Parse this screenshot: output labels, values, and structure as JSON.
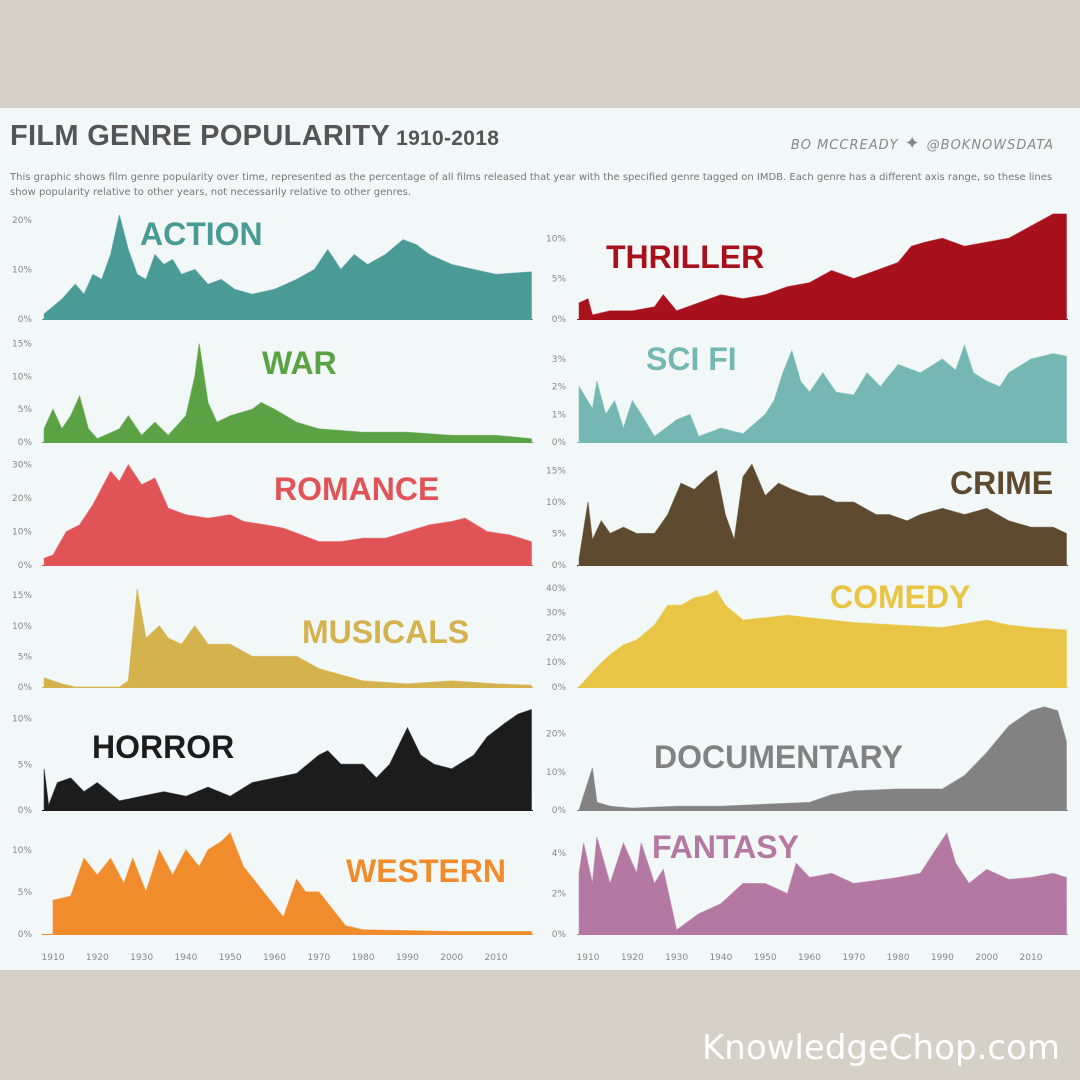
{
  "header": {
    "title": "FILM GENRE POPULARITY",
    "years": "1910-2018",
    "author": "BO MCCREADY",
    "twitter_icon": "twitter-bird-icon",
    "handle": "@BOKNOWSDATA",
    "description": "This graphic shows film genre popularity over time, represented as the percentage of all films released that year with the specified genre tagged on IMDB. Each genre has a different axis range, so these lines show popularity relative to other years, not necessarily relative to other genres."
  },
  "watermark": "KnowledgeChop.com",
  "chart_data": [
    {
      "type": "area",
      "name": "ACTION",
      "color": "#4a9a96",
      "ylim": [
        0,
        22
      ],
      "yticks": [
        {
          "v": 0,
          "label": "0%"
        },
        {
          "v": 10,
          "label": "10%"
        },
        {
          "v": 20,
          "label": "20%"
        }
      ],
      "x": [
        1908,
        1912,
        1915,
        1917,
        1919,
        1921,
        1923,
        1925,
        1927,
        1929,
        1931,
        1933,
        1935,
        1937,
        1939,
        1942,
        1945,
        1948,
        1951,
        1955,
        1960,
        1965,
        1969,
        1972,
        1975,
        1978,
        1981,
        1985,
        1989,
        1992,
        1995,
        2000,
        2005,
        2010,
        2018
      ],
      "y": [
        1,
        4,
        7,
        5,
        9,
        8,
        13,
        21,
        14,
        9,
        8,
        13,
        11,
        12,
        9,
        10,
        7,
        8,
        6,
        5,
        6,
        8,
        10,
        14,
        10,
        13,
        11,
        13,
        16,
        15,
        13,
        11,
        10,
        9,
        9.5
      ]
    },
    {
      "type": "area",
      "name": "THRILLER",
      "color": "#a8101c",
      "ylim": [
        0,
        13.5
      ],
      "yticks": [
        {
          "v": 0,
          "label": "0%"
        },
        {
          "v": 5,
          "label": "5%"
        },
        {
          "v": 10,
          "label": "10%"
        }
      ],
      "x": [
        1908,
        1910,
        1911,
        1915,
        1920,
        1925,
        1927,
        1930,
        1935,
        1940,
        1945,
        1950,
        1955,
        1960,
        1965,
        1970,
        1975,
        1980,
        1983,
        1986,
        1990,
        1995,
        2000,
        2005,
        2010,
        2015,
        2018
      ],
      "y": [
        2,
        2.5,
        0.5,
        1,
        1,
        1.5,
        3,
        1,
        2,
        3,
        2.5,
        3,
        4,
        4.5,
        6,
        5,
        6,
        7,
        9,
        9.5,
        10,
        9,
        9.5,
        10,
        11.5,
        13,
        13
      ]
    },
    {
      "type": "area",
      "name": "WAR",
      "color": "#5aa244",
      "ylim": [
        0,
        16
      ],
      "yticks": [
        {
          "v": 0,
          "label": "0%"
        },
        {
          "v": 5,
          "label": "5%"
        },
        {
          "v": 10,
          "label": "10%"
        },
        {
          "v": 15,
          "label": "15%"
        }
      ],
      "x": [
        1908,
        1910,
        1912,
        1914,
        1916,
        1918,
        1920,
        1925,
        1927,
        1930,
        1933,
        1936,
        1940,
        1942,
        1943,
        1945,
        1947,
        1950,
        1955,
        1957,
        1960,
        1965,
        1970,
        1980,
        1990,
        2000,
        2010,
        2018
      ],
      "y": [
        2,
        5,
        2,
        4,
        7,
        2,
        0.5,
        2,
        4,
        1,
        3,
        1,
        4,
        10,
        15,
        6,
        3,
        4,
        5,
        6,
        5,
        3,
        2,
        1.5,
        1.5,
        1,
        1,
        0.5
      ]
    },
    {
      "type": "area",
      "name": "SCI FI",
      "color": "#75b7b2",
      "ylim": [
        0,
        3.8
      ],
      "yticks": [
        {
          "v": 0,
          "label": "0%"
        },
        {
          "v": 1,
          "label": "1%"
        },
        {
          "v": 2,
          "label": "2%"
        },
        {
          "v": 3,
          "label": "3%"
        }
      ],
      "x": [
        1908,
        1911,
        1912,
        1914,
        1916,
        1918,
        1920,
        1922,
        1925,
        1930,
        1933,
        1935,
        1940,
        1945,
        1950,
        1952,
        1954,
        1956,
        1958,
        1960,
        1963,
        1966,
        1970,
        1973,
        1976,
        1980,
        1985,
        1990,
        1993,
        1995,
        1997,
        2000,
        2003,
        2005,
        2010,
        2015,
        2018
      ],
      "y": [
        2,
        1.2,
        2.2,
        1,
        1.5,
        0.5,
        1.5,
        1,
        0.2,
        0.8,
        1,
        0.2,
        0.5,
        0.3,
        1,
        1.5,
        2.5,
        3.3,
        2.2,
        1.8,
        2.5,
        1.8,
        1.7,
        2.5,
        2,
        2.8,
        2.5,
        3,
        2.6,
        3.5,
        2.5,
        2.2,
        2,
        2.5,
        3,
        3.2,
        3.1
      ]
    },
    {
      "type": "area",
      "name": "ROMANCE",
      "color": "#e05458",
      "ylim": [
        0,
        32
      ],
      "yticks": [
        {
          "v": 0,
          "label": "0%"
        },
        {
          "v": 10,
          "label": "10%"
        },
        {
          "v": 20,
          "label": "20%"
        },
        {
          "v": 30,
          "label": "30%"
        }
      ],
      "x": [
        1908,
        1910,
        1913,
        1916,
        1919,
        1923,
        1925,
        1927,
        1930,
        1933,
        1936,
        1940,
        1945,
        1950,
        1953,
        1958,
        1962,
        1966,
        1970,
        1975,
        1980,
        1985,
        1990,
        1995,
        2000,
        2003,
        2008,
        2013,
        2018
      ],
      "y": [
        2,
        3,
        10,
        12,
        18,
        28,
        25,
        30,
        24,
        26,
        17,
        15,
        14,
        15,
        13,
        12,
        11,
        9,
        7,
        7,
        8,
        8,
        10,
        12,
        13,
        14,
        10,
        9,
        7
      ]
    },
    {
      "type": "area",
      "name": "CRIME",
      "color": "#5e4a2e",
      "ylim": [
        0,
        17
      ],
      "yticks": [
        {
          "v": 0,
          "label": "0%"
        },
        {
          "v": 5,
          "label": "5%"
        },
        {
          "v": 10,
          "label": "10%"
        },
        {
          "v": 15,
          "label": "15%"
        }
      ],
      "x": [
        1908,
        1910,
        1911,
        1913,
        1915,
        1918,
        1921,
        1925,
        1928,
        1931,
        1934,
        1937,
        1939,
        1941,
        1943,
        1945,
        1947,
        1950,
        1953,
        1956,
        1960,
        1963,
        1966,
        1970,
        1975,
        1978,
        1982,
        1985,
        1990,
        1995,
        2000,
        2005,
        2010,
        2015,
        2018
      ],
      "y": [
        1,
        10,
        4,
        7,
        5,
        6,
        5,
        5,
        8,
        13,
        12,
        14,
        15,
        8,
        4,
        14,
        16,
        11,
        13,
        12,
        11,
        11,
        10,
        10,
        8,
        8,
        7,
        8,
        9,
        8,
        9,
        7,
        6,
        6,
        5
      ]
    },
    {
      "type": "area",
      "name": "MUSICALS",
      "color": "#d4b24e",
      "ylim": [
        0,
        17
      ],
      "yticks": [
        {
          "v": 0,
          "label": "0%"
        },
        {
          "v": 5,
          "label": "5%"
        },
        {
          "v": 10,
          "label": "10%"
        },
        {
          "v": 15,
          "label": "15%"
        }
      ],
      "x": [
        1908,
        1912,
        1915,
        1925,
        1927,
        1929,
        1931,
        1934,
        1936,
        1939,
        1942,
        1945,
        1950,
        1955,
        1960,
        1965,
        1970,
        1975,
        1980,
        1990,
        2000,
        2010,
        2018
      ],
      "y": [
        1.5,
        0.5,
        0,
        0,
        1,
        16,
        8,
        10,
        8,
        7,
        10,
        7,
        7,
        5,
        5,
        5,
        3,
        2,
        1,
        0.5,
        1,
        0.5,
        0.3
      ]
    },
    {
      "type": "area",
      "name": "COMEDY",
      "color": "#e8c544",
      "ylim": [
        0,
        42
      ],
      "yticks": [
        {
          "v": 0,
          "label": "0%"
        },
        {
          "v": 10,
          "label": "10%"
        },
        {
          "v": 20,
          "label": "20%"
        },
        {
          "v": 30,
          "label": "30%"
        },
        {
          "v": 40,
          "label": "40%"
        }
      ],
      "x": [
        1908,
        1912,
        1915,
        1918,
        1921,
        1925,
        1928,
        1931,
        1934,
        1937,
        1939,
        1941,
        1945,
        1950,
        1955,
        1960,
        1970,
        1980,
        1990,
        2000,
        2005,
        2010,
        2018
      ],
      "y": [
        0,
        8,
        13,
        17,
        19,
        25,
        33,
        33,
        36,
        37,
        39,
        33,
        27,
        28,
        29,
        28,
        26,
        25,
        24,
        27,
        25,
        24,
        23
      ]
    },
    {
      "type": "area",
      "name": "HORROR",
      "color": "#1c1c1c",
      "ylim": [
        0,
        11.5
      ],
      "yticks": [
        {
          "v": 0,
          "label": "0%"
        },
        {
          "v": 5,
          "label": "5%"
        },
        {
          "v": 10,
          "label": "10%"
        }
      ],
      "x": [
        1908,
        1909,
        1911,
        1914,
        1917,
        1920,
        1925,
        1930,
        1935,
        1940,
        1945,
        1950,
        1955,
        1960,
        1965,
        1970,
        1972,
        1975,
        1980,
        1983,
        1986,
        1990,
        1993,
        1996,
        2000,
        2005,
        2008,
        2012,
        2015,
        2018
      ],
      "y": [
        4.5,
        0.5,
        3,
        3.5,
        2,
        3,
        1,
        1.5,
        2,
        1.5,
        2.5,
        1.5,
        3,
        3.5,
        4,
        6,
        6.5,
        5,
        5,
        3.5,
        5,
        9,
        6,
        5,
        4.5,
        6,
        8,
        9.5,
        10.5,
        11
      ]
    },
    {
      "type": "area",
      "name": "DOCUMENTARY",
      "color": "#828282",
      "ylim": [
        0,
        27.5
      ],
      "yticks": [
        {
          "v": 0,
          "label": "0%"
        },
        {
          "v": 10,
          "label": "10%"
        },
        {
          "v": 20,
          "label": "20%"
        }
      ],
      "x": [
        1908,
        1911,
        1912,
        1915,
        1920,
        1930,
        1940,
        1950,
        1960,
        1965,
        1970,
        1980,
        1990,
        1995,
        2000,
        2005,
        2010,
        2013,
        2016,
        2018
      ],
      "y": [
        0,
        11,
        2,
        1,
        0.5,
        1,
        1,
        1.5,
        2,
        4,
        5,
        5.5,
        5.5,
        9,
        15,
        22,
        26,
        27,
        26,
        18
      ]
    },
    {
      "type": "area",
      "name": "WESTERN",
      "color": "#f08c2c",
      "ylim": [
        0,
        12.6
      ],
      "yticks": [
        {
          "v": 0,
          "label": "0%"
        },
        {
          "v": 5,
          "label": "5%"
        },
        {
          "v": 10,
          "label": "10%"
        }
      ],
      "x": [
        1910,
        1914,
        1917,
        1920,
        1923,
        1926,
        1928,
        1931,
        1934,
        1937,
        1940,
        1943,
        1945,
        1948,
        1950,
        1953,
        1956,
        1959,
        1962,
        1965,
        1967,
        1970,
        1973,
        1976,
        1980,
        1990,
        2000,
        2018
      ],
      "y": [
        4,
        4.5,
        9,
        7,
        9,
        6,
        9,
        5,
        10,
        7,
        10,
        8,
        10,
        11,
        12,
        8,
        6,
        4,
        2,
        6.5,
        5,
        5,
        3,
        1,
        0.5,
        0.4,
        0.3,
        0.3
      ]
    },
    {
      "type": "area",
      "name": "FANTASY",
      "color": "#b479a3",
      "ylim": [
        0,
        5.25
      ],
      "yticks": [
        {
          "v": 0,
          "label": "0%"
        },
        {
          "v": 2,
          "label": "2%"
        },
        {
          "v": 4,
          "label": "4%"
        }
      ],
      "x": [
        1908,
        1909,
        1911,
        1912,
        1915,
        1918,
        1921,
        1922,
        1925,
        1927,
        1930,
        1935,
        1940,
        1945,
        1950,
        1955,
        1957,
        1960,
        1965,
        1970,
        1980,
        1985,
        1988,
        1991,
        1993,
        1996,
        2000,
        2005,
        2010,
        2015,
        2018
      ],
      "y": [
        3,
        4.5,
        2.5,
        4.8,
        2.5,
        4.5,
        3,
        4.5,
        2.5,
        3.2,
        0.2,
        1,
        1.5,
        2.5,
        2.5,
        2,
        3.5,
        2.8,
        3,
        2.5,
        2.8,
        3,
        4,
        5,
        3.5,
        2.5,
        3.2,
        2.7,
        2.8,
        3,
        2.8
      ]
    }
  ],
  "x_axis": {
    "ticks": [
      "1910",
      "1920",
      "1930",
      "1940",
      "1950",
      "1960",
      "1970",
      "1980",
      "1990",
      "2000",
      "2010"
    ]
  }
}
